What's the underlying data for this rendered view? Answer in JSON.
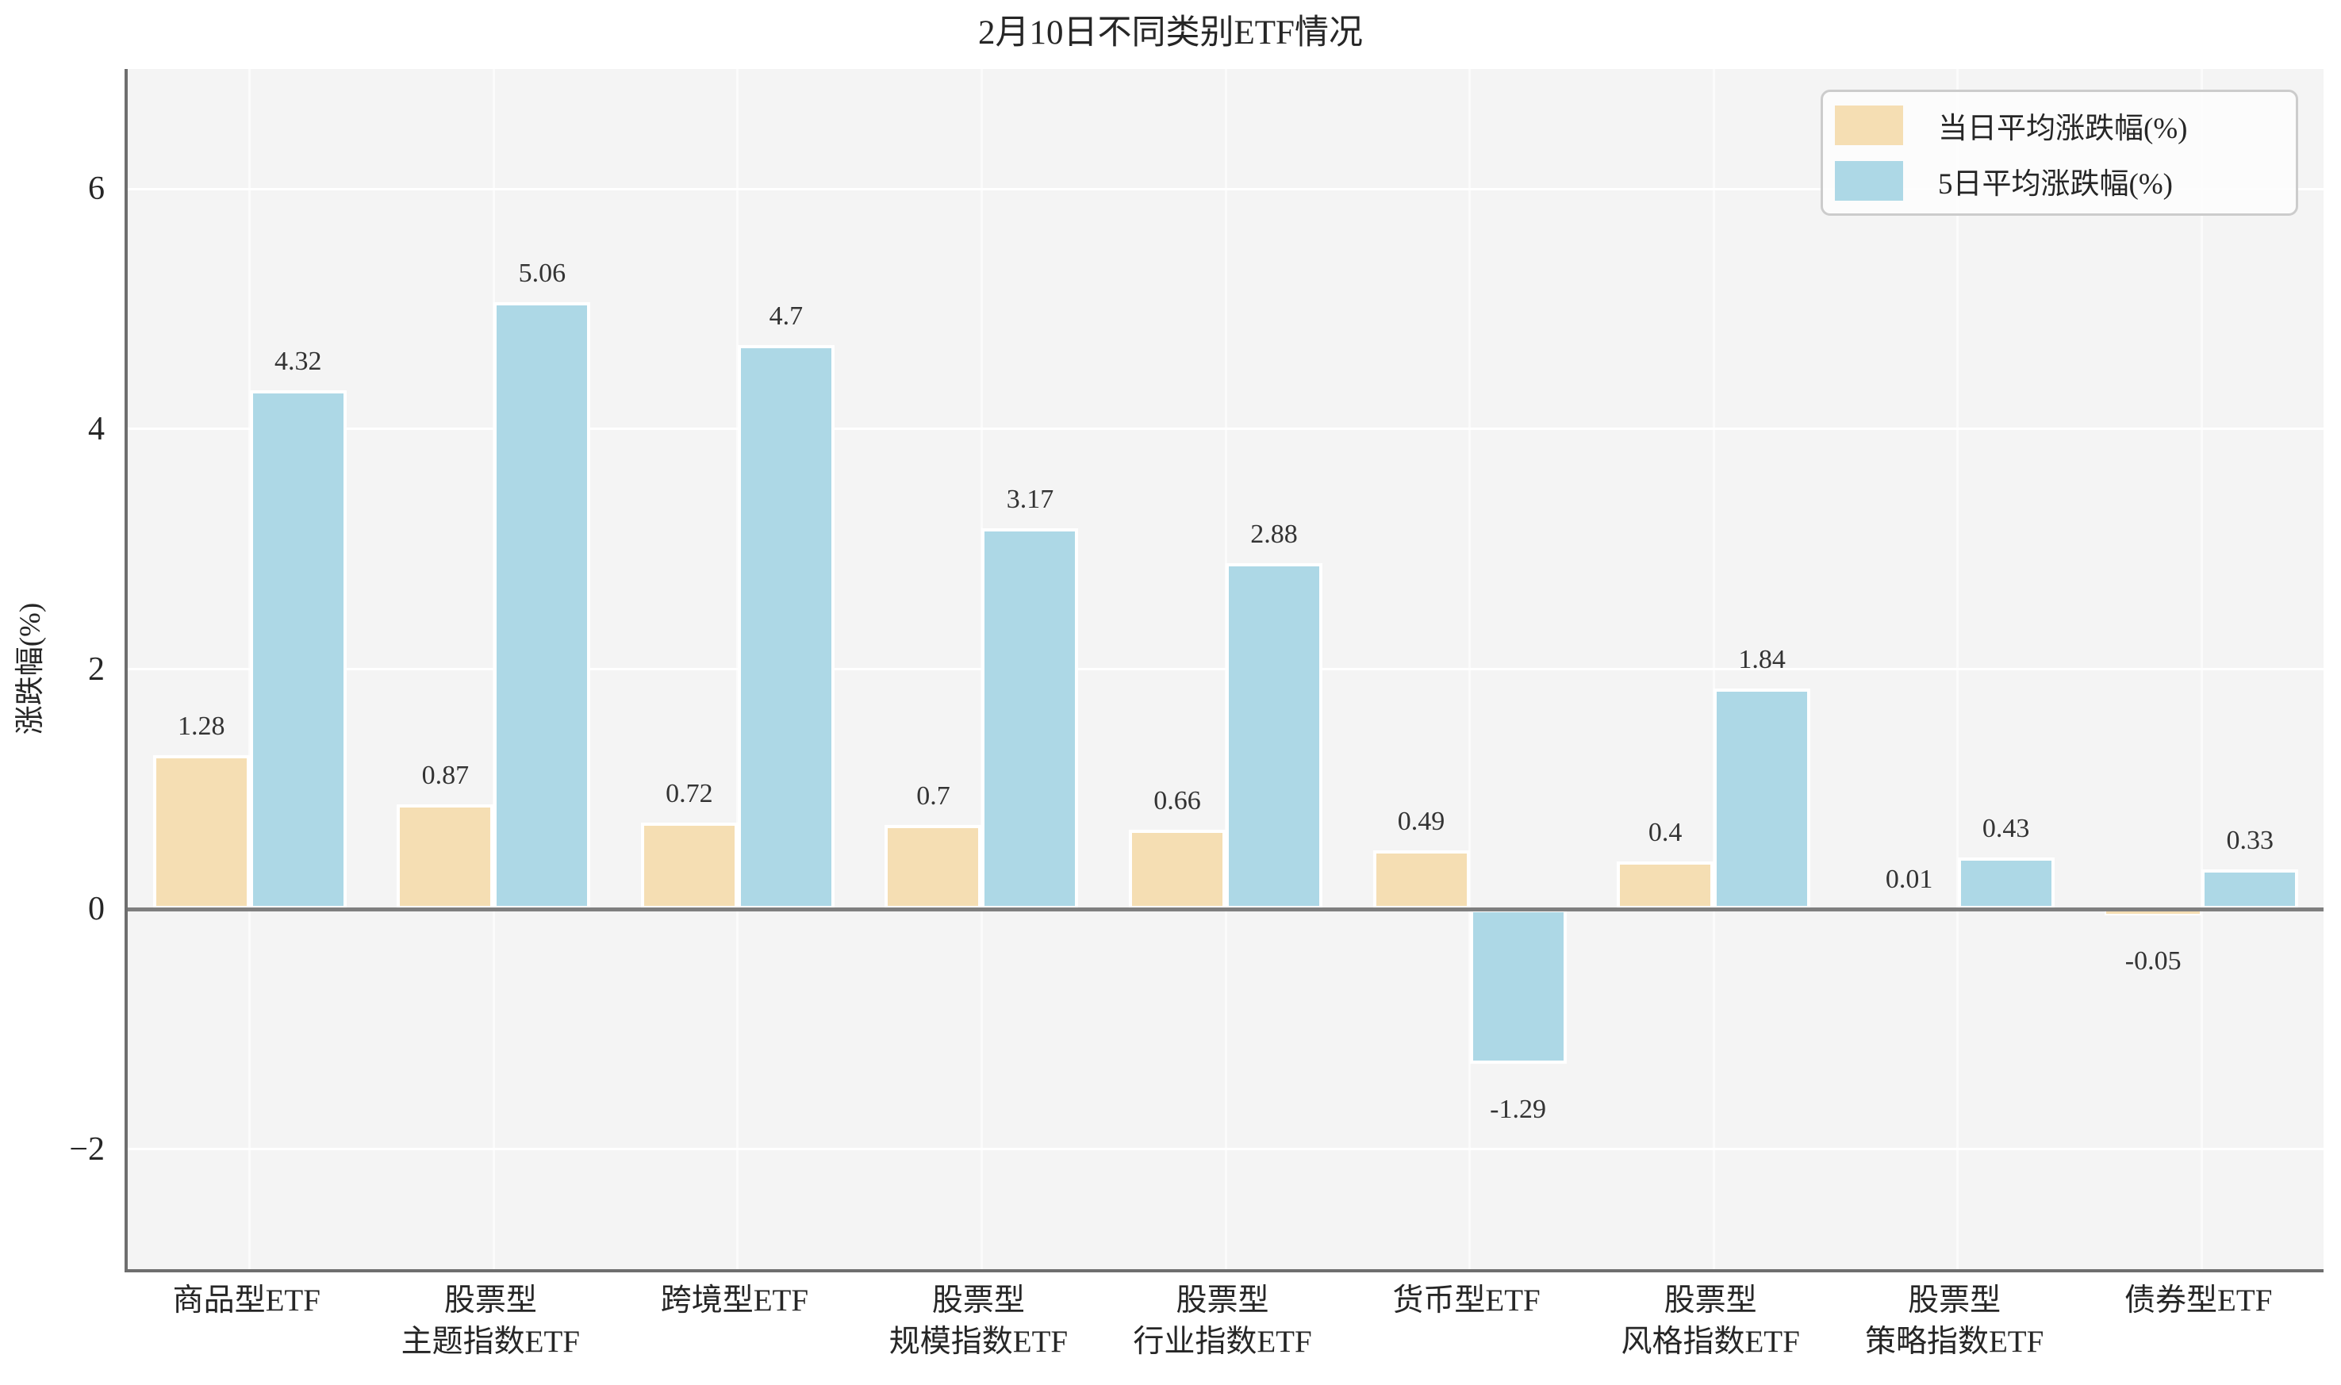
{
  "title": "2月10日不同类别ETF情况",
  "colors": {
    "plot_background": "#f4f4f4",
    "grid": "#ffffff",
    "zero_line": "#7f7f7f",
    "spine": "#6e6e6e",
    "series_day": "#f5deb3",
    "series_5day": "#add8e6",
    "text": "#2b2b2b"
  },
  "chart_data": {
    "type": "bar",
    "title": "2月10日不同类别ETF情况",
    "categories": [
      "商品型ETF",
      "股票型\n主题指数ETF",
      "跨境型ETF",
      "股票型\n规模指数ETF",
      "股票型\n行业指数ETF",
      "货币型ETF",
      "股票型\n风格指数ETF",
      "股票型\n策略指数ETF",
      "债券型ETF"
    ],
    "series": [
      {
        "name": "当日平均涨跌幅(%)",
        "color": "#f5deb3",
        "values": [
          1.28,
          0.87,
          0.72,
          0.7,
          0.66,
          0.49,
          0.4,
          0.01,
          -0.05
        ],
        "labels": [
          "1.28",
          "0.87",
          "0.72",
          "0.7",
          "0.66",
          "0.49",
          "0.4",
          "0.01",
          "-0.05"
        ]
      },
      {
        "name": "5日平均涨跌幅(%)",
        "color": "#add8e6",
        "values": [
          4.32,
          5.06,
          4.7,
          3.17,
          2.88,
          -1.29,
          1.84,
          0.43,
          0.33
        ],
        "labels": [
          "4.32",
          "5.06",
          "4.7",
          "3.17",
          "2.88",
          "-1.29",
          "1.84",
          "0.43",
          "0.33"
        ]
      }
    ],
    "xlabel": "",
    "ylabel": "涨跌幅(%)",
    "ylim": [
      -3,
      7
    ],
    "yticks": [
      -2,
      0,
      2,
      4,
      6
    ],
    "grid": true,
    "legend_position": "upper right"
  }
}
